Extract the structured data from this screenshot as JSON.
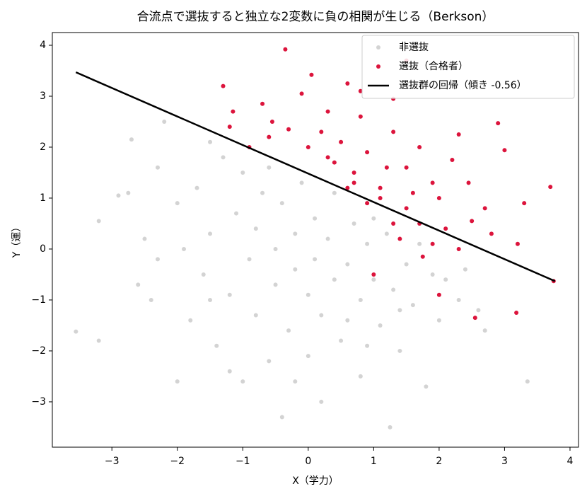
{
  "chart_data": {
    "type": "scatter",
    "title": "合流点で選抜すると独立な2変数に負の相関が生じる（Berkson）",
    "x_label": "X（学力）",
    "y_label": "Y（運）",
    "xlim": [
      -3.91,
      4.13
    ],
    "ylim": [
      -3.89,
      4.25
    ],
    "xticks": [
      {
        "value": -3,
        "label": "−3"
      },
      {
        "value": -2,
        "label": "−2"
      },
      {
        "value": -1,
        "label": "−1"
      },
      0,
      1,
      2,
      3,
      4
    ],
    "yticks": [
      {
        "value": -3,
        "label": "−3"
      },
      {
        "value": -2,
        "label": "−2"
      },
      {
        "value": -1,
        "label": "−1"
      },
      0,
      1,
      2,
      3,
      4
    ],
    "legend": "upper right",
    "series": [
      {
        "name": "非選抜",
        "type": "scatter",
        "color": "#d3d3d3",
        "x": [
          -3.55,
          -3.2,
          -3.2,
          -2.9,
          -2.75,
          -2.7,
          -2.5,
          -2.4,
          -2.3,
          -2.2,
          -2.0,
          -2.0,
          -1.8,
          -1.7,
          -1.6,
          -1.5,
          -1.5,
          -1.4,
          -1.3,
          -1.2,
          -1.1,
          -1.0,
          -1.0,
          -0.9,
          -0.8,
          -0.8,
          -0.7,
          -0.6,
          -0.5,
          -0.5,
          -0.4,
          -0.4,
          -0.3,
          -0.2,
          -0.2,
          -0.1,
          0.0,
          0.0,
          0.1,
          0.1,
          0.2,
          0.2,
          0.3,
          0.4,
          0.4,
          0.5,
          0.6,
          0.7,
          0.8,
          0.8,
          0.9,
          1.0,
          1.1,
          1.2,
          1.25,
          1.3,
          1.4,
          1.5,
          1.6,
          1.7,
          1.8,
          1.9,
          2.0,
          2.1,
          2.3,
          2.4,
          2.6,
          2.7,
          3.35,
          -1.9,
          -2.6,
          -1.2,
          0.9,
          -0.6,
          0.6,
          1.4,
          -2.3,
          -0.2,
          1.0,
          -1.5
        ],
        "values": [
          -1.62,
          -1.8,
          0.55,
          1.05,
          1.1,
          2.15,
          0.2,
          -1.0,
          1.6,
          2.5,
          -2.6,
          0.9,
          -1.4,
          1.2,
          -0.5,
          2.1,
          0.3,
          -1.9,
          1.8,
          -0.9,
          0.7,
          -2.6,
          1.5,
          -0.2,
          0.4,
          -1.3,
          1.1,
          -2.2,
          0.0,
          -0.7,
          -3.3,
          0.9,
          -1.6,
          0.3,
          -0.4,
          1.3,
          -2.1,
          -0.9,
          0.6,
          -0.2,
          -3.0,
          -1.3,
          0.2,
          -0.6,
          1.1,
          -1.8,
          -0.3,
          0.5,
          -1.0,
          -2.5,
          0.1,
          -0.6,
          -1.5,
          0.3,
          -3.5,
          -0.8,
          -2.0,
          -0.3,
          -1.1,
          0.1,
          -2.7,
          -0.5,
          -1.4,
          -0.6,
          -1.0,
          -0.4,
          -1.2,
          -1.6,
          -2.6,
          0.0,
          -0.7,
          -2.4,
          -1.9,
          1.6,
          -1.4,
          -1.2,
          -0.2,
          -2.6,
          0.6,
          -1.0
        ]
      },
      {
        "name": "選抜（合格者）",
        "type": "scatter",
        "color": "#dc143c",
        "x": [
          -1.3,
          -1.15,
          -1.2,
          -0.35,
          -0.7,
          -0.55,
          -0.9,
          0.05,
          -0.1,
          0.3,
          0.6,
          0.8,
          1.3,
          1.5,
          0.2,
          0.5,
          0.4,
          0.7,
          0.9,
          1.1,
          1.3,
          1.5,
          1.7,
          1.9,
          2.2,
          2.3,
          2.45,
          2.9,
          3.0,
          3.7,
          2.8,
          2.7,
          3.2,
          3.3,
          3.75,
          3.18,
          2.55,
          2.0,
          1.75,
          1.5,
          1.3,
          1.1,
          0.9,
          0.7,
          0.3,
          0.0,
          -0.3,
          -0.6,
          1.0,
          1.4,
          1.7,
          2.1,
          2.3,
          2.5,
          0.6,
          0.8,
          1.2,
          1.6,
          1.9,
          2.0
        ],
        "values": [
          3.2,
          2.7,
          2.4,
          3.92,
          2.85,
          2.5,
          2.0,
          3.42,
          3.05,
          2.7,
          3.25,
          3.1,
          2.95,
          3.7,
          2.3,
          2.1,
          1.7,
          1.5,
          1.9,
          1.2,
          2.3,
          1.6,
          2.0,
          1.3,
          1.75,
          2.25,
          1.3,
          2.47,
          1.94,
          1.22,
          0.3,
          0.8,
          0.1,
          0.9,
          -0.63,
          -1.25,
          -1.35,
          -0.9,
          -0.15,
          0.8,
          0.5,
          1.0,
          0.9,
          1.3,
          1.8,
          2.0,
          2.35,
          2.2,
          -0.5,
          0.2,
          0.5,
          0.4,
          0.0,
          0.55,
          1.2,
          2.6,
          1.6,
          1.1,
          0.1,
          1.0
        ]
      },
      {
        "name": "選抜群の回帰（傾き -0.56）",
        "type": "line",
        "color": "#000000",
        "x": [
          -3.55,
          3.77
        ],
        "values": [
          3.47,
          -0.63
        ]
      }
    ]
  }
}
